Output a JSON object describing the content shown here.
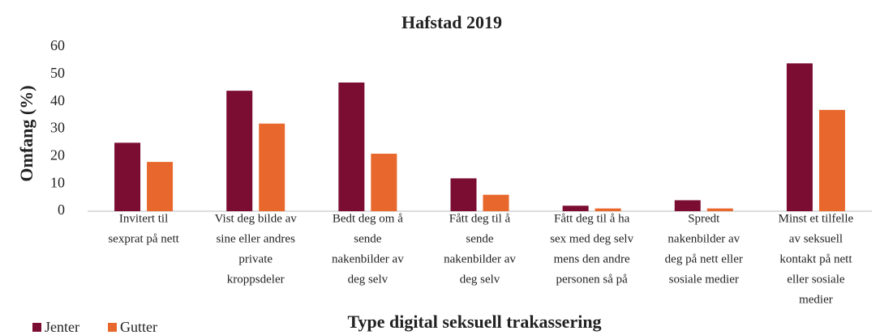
{
  "chart_data": {
    "type": "bar",
    "title": "Hafstad 2019",
    "y_label": "Omfang (%)",
    "x_label": "Type digital seksuell trakassering",
    "categories": [
      [
        "Invitert til",
        "sexprat på nett"
      ],
      [
        "Vist deg bilde av",
        "sine eller andres",
        "private",
        "kroppsdeler"
      ],
      [
        "Bedt deg om å",
        "sende",
        "nakenbilder av",
        "deg selv"
      ],
      [
        "Fått deg til å",
        "sende",
        "nakenbilder av",
        "deg selv"
      ],
      [
        "Fått deg til å ha",
        "sex med deg selv",
        "mens den andre",
        "personen så på"
      ],
      [
        "Spredt",
        "nakenbilder av",
        "deg på nett eller",
        "sosiale medier"
      ],
      [
        "Minst et tilfelle",
        "av seksuell",
        "kontakt på nett",
        "eller sosiale",
        "medier"
      ]
    ],
    "series": [
      {
        "name": "Jenter",
        "color": "#7b0d32",
        "values": [
          25,
          44,
          47,
          12,
          2,
          4,
          54
        ]
      },
      {
        "name": "Gutter",
        "color": "#e8672c",
        "values": [
          18,
          32,
          21,
          6,
          1,
          1,
          37
        ]
      }
    ],
    "ylim": [
      0,
      60
    ],
    "yticks": [
      0,
      10,
      20,
      30,
      40,
      50,
      60
    ],
    "grid": false,
    "legend": "bottom-left"
  }
}
